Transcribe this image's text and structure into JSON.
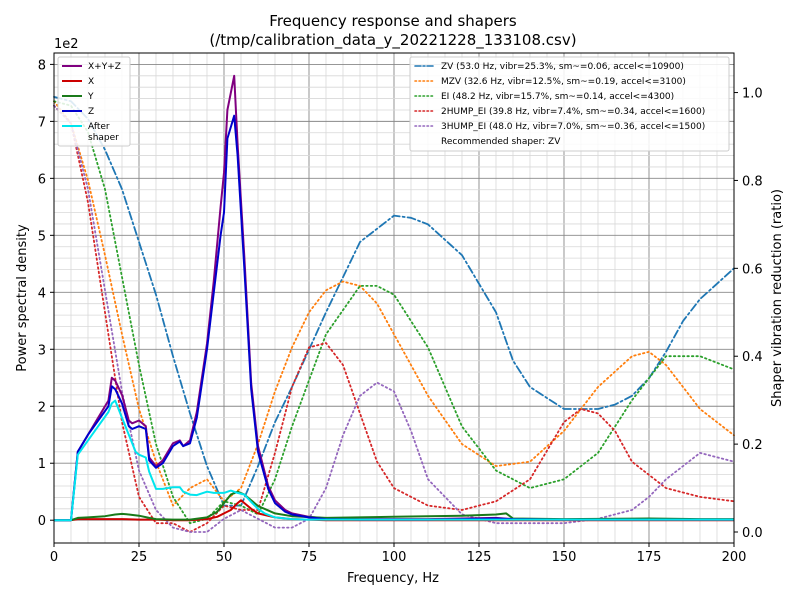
{
  "chart_data": {
    "type": "line",
    "title_line1": "Frequency response and shapers",
    "title_line2": "(/tmp/calibration_data_y_20221228_133108.csv)",
    "xlabel": "Frequency, Hz",
    "ylabel_left": "Power spectral density",
    "ylabel_right": "Shaper vibration reduction (ratio)",
    "y_left_multiplier_label": "1e2",
    "xlim": [
      0,
      200
    ],
    "ylim_left": [
      -0.4,
      8.2
    ],
    "ylim_right": [
      -0.025,
      1.09
    ],
    "x_ticks": [
      0,
      25,
      50,
      75,
      100,
      125,
      150,
      175,
      200
    ],
    "y_left_ticks": [
      0,
      1,
      2,
      3,
      4,
      5,
      6,
      7,
      8
    ],
    "y_right_ticks": [
      "0.0",
      "0.2",
      "0.4",
      "0.6",
      "0.8",
      "1.0"
    ],
    "grid": "major and minor",
    "psd_legend_position": "top-left",
    "shaper_legend_position": "top-right",
    "psd_series": [
      {
        "name": "X+Y+Z",
        "color": "#800080",
        "width": 2,
        "x": [
          0,
          5,
          7,
          10,
          13,
          16,
          17,
          18,
          20,
          22,
          23,
          25,
          27,
          28,
          30,
          32,
          35,
          37,
          38,
          40,
          42,
          45,
          47,
          49,
          50,
          51,
          52,
          53,
          54,
          56,
          58,
          60,
          63,
          65,
          68,
          70,
          75,
          80,
          90,
          100,
          110,
          120,
          130,
          135,
          150,
          175,
          200
        ],
        "y": [
          0,
          0,
          1.2,
          1.5,
          1.8,
          2.1,
          2.5,
          2.45,
          2.2,
          1.75,
          1.7,
          1.75,
          1.65,
          1.1,
          0.95,
          1.05,
          1.35,
          1.4,
          1.3,
          1.4,
          1.9,
          3.1,
          4.2,
          5.5,
          6.1,
          7.2,
          7.5,
          7.8,
          6.6,
          4.6,
          2.4,
          1.3,
          0.6,
          0.35,
          0.18,
          0.12,
          0.06,
          0.03,
          0.02,
          0.02,
          0.02,
          0.03,
          0.04,
          0.02,
          0.01,
          0.01,
          0.01
        ]
      },
      {
        "name": "X",
        "color": "#cc0000",
        "width": 2,
        "x": [
          0,
          5,
          7,
          10,
          15,
          20,
          25,
          30,
          35,
          40,
          45,
          48,
          50,
          52,
          54,
          55,
          56,
          58,
          60,
          65,
          70,
          75,
          80,
          100,
          150,
          200
        ],
        "y": [
          0,
          0,
          0.02,
          0.02,
          0.02,
          0.02,
          0.01,
          0.01,
          0.0,
          0.0,
          0.02,
          0.06,
          0.12,
          0.18,
          0.3,
          0.35,
          0.3,
          0.2,
          0.12,
          0.05,
          0.02,
          0.01,
          0.0,
          0.0,
          0.0,
          0.0
        ]
      },
      {
        "name": "Y",
        "color": "#1a7a1a",
        "width": 2,
        "x": [
          0,
          5,
          7,
          10,
          15,
          18,
          20,
          22,
          25,
          28,
          30,
          35,
          40,
          45,
          48,
          50,
          52,
          54,
          56,
          58,
          60,
          65,
          70,
          80,
          100,
          120,
          130,
          133,
          135,
          150,
          175,
          190,
          200
        ],
        "y": [
          0,
          0,
          0.04,
          0.05,
          0.07,
          0.1,
          0.11,
          0.1,
          0.08,
          0.04,
          0.02,
          0.01,
          0.01,
          0.05,
          0.15,
          0.3,
          0.45,
          0.5,
          0.45,
          0.35,
          0.25,
          0.12,
          0.07,
          0.04,
          0.06,
          0.08,
          0.1,
          0.12,
          0.03,
          0.02,
          0.03,
          0.02,
          0.02
        ]
      },
      {
        "name": "Z",
        "color": "#0000cc",
        "width": 2,
        "x": [
          0,
          5,
          7,
          10,
          13,
          16,
          17,
          18,
          20,
          22,
          23,
          25,
          27,
          28,
          30,
          32,
          35,
          37,
          38,
          40,
          42,
          45,
          47,
          49,
          50,
          51,
          52,
          53,
          54,
          56,
          58,
          60,
          63,
          65,
          68,
          70,
          75,
          80,
          90,
          100,
          110,
          120,
          130,
          135,
          150,
          175,
          200
        ],
        "y": [
          0,
          0,
          1.2,
          1.5,
          1.75,
          2.0,
          2.35,
          2.3,
          2.05,
          1.65,
          1.6,
          1.65,
          1.6,
          1.05,
          0.92,
          1.0,
          1.3,
          1.38,
          1.3,
          1.35,
          1.8,
          3.0,
          4.0,
          5.0,
          5.4,
          6.7,
          6.9,
          7.1,
          6.4,
          4.4,
          2.3,
          1.2,
          0.55,
          0.3,
          0.15,
          0.1,
          0.05,
          0.02,
          0.01,
          0.01,
          0.01,
          0.02,
          0.03,
          0.02,
          0.01,
          0.01,
          0.01
        ]
      },
      {
        "name": "After\nshaper",
        "color": "#00e5ee",
        "width": 2,
        "x": [
          0,
          5,
          7,
          10,
          13,
          16,
          17,
          18,
          20,
          22,
          24,
          25,
          27,
          28,
          30,
          32,
          35,
          37,
          38,
          40,
          42,
          45,
          47,
          50,
          52,
          54,
          56,
          58,
          60,
          62,
          65,
          70,
          75,
          80,
          100,
          125,
          150,
          175,
          200
        ],
        "y": [
          0,
          0,
          1.15,
          1.4,
          1.65,
          1.9,
          2.05,
          2.1,
          1.8,
          1.5,
          1.2,
          1.15,
          1.1,
          0.85,
          0.55,
          0.55,
          0.58,
          0.58,
          0.5,
          0.45,
          0.44,
          0.5,
          0.48,
          0.48,
          0.52,
          0.48,
          0.45,
          0.32,
          0.2,
          0.12,
          0.05,
          0.02,
          0.01,
          0.01,
          0.01,
          0.01,
          0.01,
          0.01,
          0.01
        ]
      }
    ],
    "shaper_series": [
      {
        "name": "ZV (53.0 Hz, vibr=25.3%, sm~=0.06, accel<=10900)",
        "color": "#1f77b4",
        "dash": "dashdot",
        "x": [
          0,
          5,
          10,
          15,
          20,
          25,
          30,
          35,
          40,
          45,
          50,
          55,
          60,
          65,
          70,
          80,
          90,
          100,
          105,
          110,
          120,
          130,
          135,
          140,
          150,
          160,
          165,
          170,
          175,
          180,
          185,
          190,
          200
        ],
        "y": [
          0.99,
          0.98,
          0.94,
          0.87,
          0.78,
          0.66,
          0.54,
          0.4,
          0.27,
          0.15,
          0.06,
          0.06,
          0.15,
          0.25,
          0.33,
          0.5,
          0.66,
          0.72,
          0.715,
          0.7,
          0.63,
          0.5,
          0.39,
          0.33,
          0.28,
          0.28,
          0.29,
          0.31,
          0.35,
          0.41,
          0.48,
          0.53,
          0.6
        ]
      },
      {
        "name": "MZV (32.6 Hz, vibr=12.5%, sm~=0.19, accel<=3100)",
        "color": "#ff7f0e",
        "dash": "dotted",
        "x": [
          0,
          5,
          10,
          15,
          20,
          25,
          30,
          35,
          40,
          45,
          50,
          55,
          60,
          65,
          70,
          75,
          80,
          85,
          90,
          95,
          100,
          110,
          120,
          130,
          140,
          150,
          160,
          170,
          175,
          180,
          190,
          200
        ],
        "y": [
          0.98,
          0.93,
          0.8,
          0.63,
          0.45,
          0.28,
          0.16,
          0.06,
          0.1,
          0.12,
          0.07,
          0.1,
          0.2,
          0.32,
          0.42,
          0.5,
          0.55,
          0.57,
          0.56,
          0.52,
          0.45,
          0.31,
          0.2,
          0.15,
          0.16,
          0.23,
          0.33,
          0.4,
          0.41,
          0.38,
          0.28,
          0.22
        ]
      },
      {
        "name": "EI (48.2 Hz, vibr=15.7%, sm~=0.14, accel<=4300)",
        "color": "#2ca02c",
        "dash": "dotted",
        "x": [
          0,
          5,
          10,
          15,
          20,
          25,
          30,
          35,
          40,
          45,
          50,
          55,
          60,
          65,
          70,
          80,
          90,
          95,
          100,
          110,
          120,
          130,
          140,
          150,
          160,
          170,
          180,
          190,
          200
        ],
        "y": [
          0.98,
          0.97,
          0.91,
          0.78,
          0.58,
          0.38,
          0.2,
          0.08,
          0.02,
          0.03,
          0.07,
          0.06,
          0.04,
          0.12,
          0.24,
          0.45,
          0.56,
          0.56,
          0.54,
          0.42,
          0.24,
          0.14,
          0.1,
          0.12,
          0.18,
          0.3,
          0.4,
          0.4,
          0.37
        ]
      },
      {
        "name": "2HUMP_EI (39.8 Hz, vibr=7.4%, sm~=0.34, accel<=1600)",
        "color": "#d62728",
        "dash": "dotted",
        "x": [
          0,
          5,
          10,
          15,
          20,
          25,
          30,
          35,
          40,
          45,
          50,
          55,
          60,
          65,
          70,
          75,
          80,
          85,
          90,
          95,
          100,
          110,
          120,
          130,
          140,
          150,
          155,
          160,
          165,
          170,
          180,
          190,
          200
        ],
        "y": [
          0.97,
          0.93,
          0.75,
          0.5,
          0.25,
          0.08,
          0.02,
          0.02,
          0.0,
          0.02,
          0.06,
          0.05,
          0.05,
          0.18,
          0.33,
          0.42,
          0.43,
          0.38,
          0.27,
          0.16,
          0.1,
          0.06,
          0.05,
          0.07,
          0.12,
          0.25,
          0.28,
          0.27,
          0.23,
          0.16,
          0.1,
          0.08,
          0.07
        ]
      },
      {
        "name": "3HUMP_EI (48.0 Hz, vibr=7.0%, sm~=0.36, accel<=1500)",
        "color": "#9467bd",
        "dash": "dotted",
        "x": [
          0,
          5,
          10,
          15,
          20,
          25,
          30,
          35,
          40,
          45,
          50,
          55,
          60,
          65,
          70,
          75,
          80,
          85,
          90,
          95,
          100,
          105,
          110,
          120,
          130,
          140,
          150,
          160,
          170,
          175,
          180,
          190,
          200
        ],
        "y": [
          0.97,
          0.93,
          0.78,
          0.55,
          0.32,
          0.14,
          0.05,
          0.01,
          0.0,
          0.0,
          0.03,
          0.05,
          0.03,
          0.01,
          0.01,
          0.03,
          0.1,
          0.22,
          0.31,
          0.34,
          0.32,
          0.23,
          0.12,
          0.04,
          0.02,
          0.02,
          0.02,
          0.03,
          0.05,
          0.08,
          0.12,
          0.18,
          0.16
        ]
      }
    ],
    "recommendation": "Recommended shaper: ZV"
  }
}
